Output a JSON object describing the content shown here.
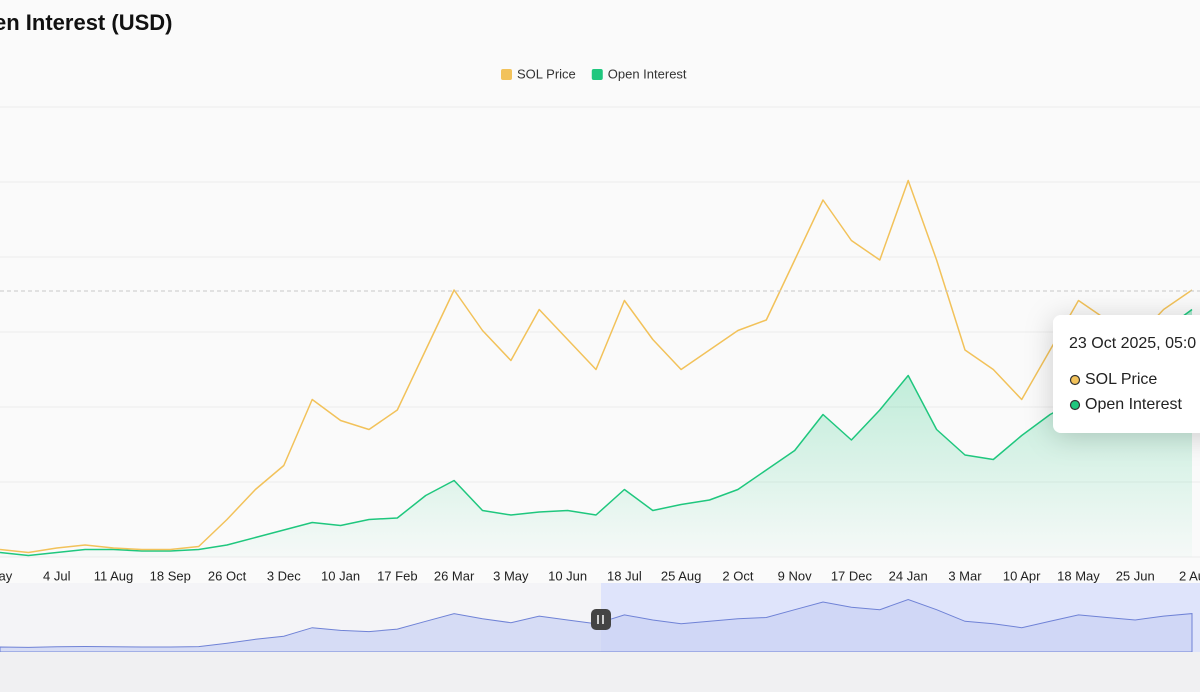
{
  "chart_data": {
    "type": "line",
    "title": "en Interest (USD)",
    "categories": [
      "May",
      null,
      "4 Jul",
      null,
      "11 Aug",
      null,
      "18 Sep",
      null,
      "26 Oct",
      null,
      "3 Dec",
      null,
      "10 Jan",
      null,
      "17 Feb",
      null,
      "26 Mar",
      null,
      "3 May",
      null,
      "10 Jun",
      null,
      "18 Jul",
      null,
      "25 Aug",
      null,
      "2 Oct",
      null,
      "9 Nov",
      null,
      "17 Dec",
      null,
      "24 Jan",
      null,
      "3 Mar",
      null,
      "10 Apr",
      null,
      "18 May",
      null,
      "25 Jun",
      null,
      "2 Au"
    ],
    "series": [
      {
        "name": "SOL Price",
        "color": "#f2c25a",
        "values": [
          5,
          3,
          6,
          8,
          6,
          5,
          5,
          7,
          25,
          45,
          61,
          105,
          91,
          85,
          98,
          138,
          178,
          151,
          131,
          165,
          145,
          125,
          171,
          145,
          125,
          138,
          151,
          158,
          198,
          238,
          211,
          198,
          251,
          198,
          138,
          125,
          105,
          138,
          171,
          158,
          145,
          165,
          178
        ]
      },
      {
        "name": "Open Interest",
        "color": "#1fc77e",
        "values": [
          3,
          1,
          3,
          5,
          5,
          4,
          4,
          5,
          8,
          13,
          18,
          23,
          21,
          25,
          26,
          41,
          51,
          31,
          28,
          30,
          31,
          28,
          45,
          31,
          35,
          38,
          45,
          58,
          71,
          95,
          78,
          98,
          121,
          85,
          68,
          65,
          81,
          95,
          105,
          91,
          118,
          151,
          165
        ]
      }
    ],
    "ylim": [
      0,
      300
    ],
    "yticks": [
      0,
      50,
      100,
      150,
      200,
      250,
      300
    ],
    "grid": true,
    "tooltip": {
      "title": "23 Oct 2025, 05:0",
      "items": [
        "SOL Price",
        "Open Interest"
      ]
    }
  }
}
